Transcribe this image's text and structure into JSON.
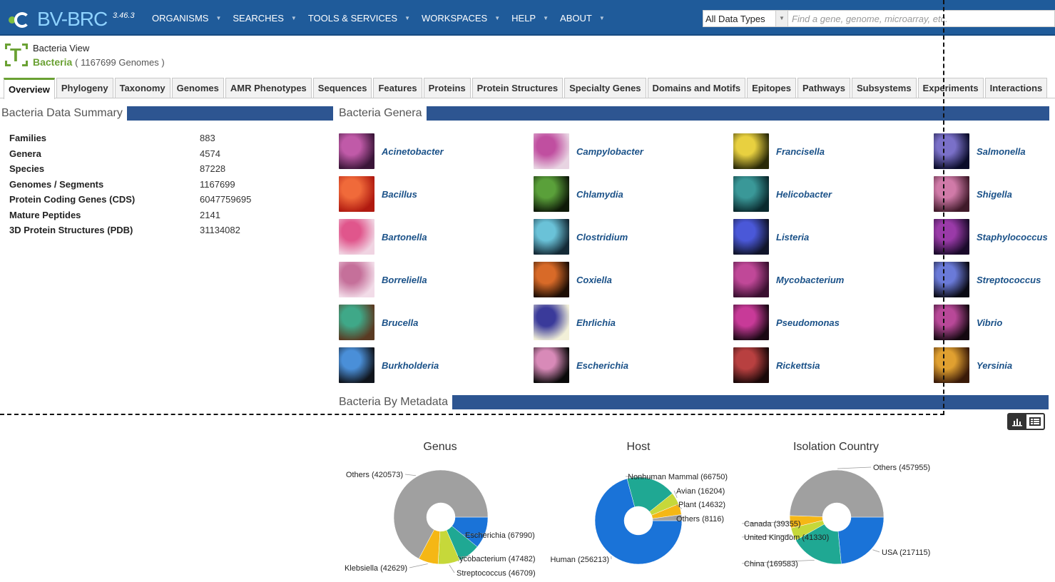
{
  "app": {
    "logo": "BV-BRC",
    "logo_prefix": "",
    "version": "3.46.3",
    "nav": [
      "ORGANISMS",
      "SEARCHES",
      "TOOLS & SERVICES",
      "WORKSPACES",
      "HELP",
      "ABOUT"
    ],
    "search_type": "All Data Types",
    "search_placeholder": "Find a gene, genome, microarray, etc."
  },
  "page": {
    "view_label": "Bacteria View",
    "taxon": "Bacteria",
    "genome_count": "( 1167699 Genomes )"
  },
  "tabs": [
    "Overview",
    "Phylogeny",
    "Taxonomy",
    "Genomes",
    "AMR Phenotypes",
    "Sequences",
    "Features",
    "Proteins",
    "Protein Structures",
    "Specialty Genes",
    "Domains and Motifs",
    "Epitopes",
    "Pathways",
    "Subsystems",
    "Experiments",
    "Interactions"
  ],
  "active_tab": "Overview",
  "summary": {
    "title": "Bacteria Data Summary",
    "rows": [
      {
        "label": "Families",
        "value": "883"
      },
      {
        "label": "Genera",
        "value": "4574"
      },
      {
        "label": "Species",
        "value": "87228"
      },
      {
        "label": "Genomes / Segments",
        "value": "1167699"
      },
      {
        "label": "Protein Coding Genes (CDS)",
        "value": "6047759695"
      },
      {
        "label": "Mature Peptides",
        "value": "2141"
      },
      {
        "label": "3D Protein Structures (PDB)",
        "value": "31134082"
      }
    ]
  },
  "genera": {
    "title": "Bacteria Genera",
    "columns": [
      [
        {
          "name": "Acinetobacter",
          "color": "#c05aa8",
          "bg": "#3a1538"
        },
        {
          "name": "Bacillus",
          "color": "#f06a3a",
          "bg": "#b01a10"
        },
        {
          "name": "Bartonella",
          "color": "#e0568c",
          "bg": "#f0d4e2"
        },
        {
          "name": "Borreliella",
          "color": "#c5709a",
          "bg": "#f2dce8"
        },
        {
          "name": "Brucella",
          "color": "#3fa888",
          "bg": "#5a3a22"
        },
        {
          "name": "Burkholderia",
          "color": "#4a8fd8",
          "bg": "#10141c"
        }
      ],
      [
        {
          "name": "Campylobacter",
          "color": "#c04fa0",
          "bg": "#e8d4e2"
        },
        {
          "name": "Chlamydia",
          "color": "#5aa03a",
          "bg": "#0e1a08"
        },
        {
          "name": "Clostridium",
          "color": "#6ac2d8",
          "bg": "#142a36"
        },
        {
          "name": "Coxiella",
          "color": "#d86a28",
          "bg": "#1e0e04"
        },
        {
          "name": "Ehrlichia",
          "color": "#3a3a9a",
          "bg": "#f2f0d8"
        },
        {
          "name": "Escherichia",
          "color": "#d88ab8",
          "bg": "#0a0a0a"
        }
      ],
      [
        {
          "name": "Francisella",
          "color": "#e8d040",
          "bg": "#2a2a08"
        },
        {
          "name": "Helicobacter",
          "color": "#3a9898",
          "bg": "#0a2a2e"
        },
        {
          "name": "Listeria",
          "color": "#4a58d8",
          "bg": "#10142a"
        },
        {
          "name": "Mycobacterium",
          "color": "#c04898",
          "bg": "#3a1030"
        },
        {
          "name": "Pseudomonas",
          "color": "#c83a98",
          "bg": "#1a0814"
        },
        {
          "name": "Rickettsia",
          "color": "#b84040",
          "bg": "#1a0808"
        }
      ],
      [
        {
          "name": "Salmonella",
          "color": "#7a70c8",
          "bg": "#0a0c2a"
        },
        {
          "name": "Shigella",
          "color": "#d07aa8",
          "bg": "#401a2a"
        },
        {
          "name": "Staphylococcus",
          "color": "#9a3aa8",
          "bg": "#1a0a2a"
        },
        {
          "name": "Streptococcus",
          "color": "#6a7ad8",
          "bg": "#0a0a14"
        },
        {
          "name": "Vibrio",
          "color": "#b84898",
          "bg": "#140810"
        },
        {
          "name": "Yersinia",
          "color": "#e0a030",
          "bg": "#3a1a08"
        }
      ]
    ]
  },
  "metadata": {
    "title": "Bacteria By Metadata"
  },
  "chart_data": [
    {
      "type": "pie",
      "title": "Genus",
      "categories": [
        "Escherichia",
        "Mycobacterium",
        "Streptococcus",
        "Klebsiella",
        "Others"
      ],
      "values": [
        67990,
        47482,
        46709,
        42629,
        420573
      ],
      "labels": [
        "Escherichia (67990)",
        "Mycobacterium (47482)",
        "Streptococcus (46709)",
        "Klebsiella (42629)",
        "Others (420573)"
      ],
      "colors": [
        "#1a73d8",
        "#1fa893",
        "#c6d83a",
        "#f5b715",
        "#a0a0a0"
      ]
    },
    {
      "type": "pie",
      "title": "Host",
      "categories": [
        "Human",
        "Nonhuman Mammal",
        "Avian",
        "Plant",
        "Others"
      ],
      "values": [
        256213,
        66750,
        16204,
        14632,
        8116
      ],
      "labels": [
        "Human (256213)",
        "Nonhuman Mammal (66750)",
        "Avian (16204)",
        "Plant (14632)",
        "Others (8116)"
      ],
      "colors": [
        "#1a73d8",
        "#1fa893",
        "#c6d83a",
        "#f5b715",
        "#a0a0a0"
      ]
    },
    {
      "type": "pie",
      "title": "Isolation Country",
      "categories": [
        "USA",
        "China",
        "United Kingdom",
        "Canada",
        "Others"
      ],
      "values": [
        217115,
        169583,
        41330,
        39355,
        457955
      ],
      "labels": [
        "USA (217115)",
        "China (169583)",
        "United Kingdom (41330)",
        "Canada (39355)",
        "Others (457955)"
      ],
      "colors": [
        "#1a73d8",
        "#1fa893",
        "#c6d83a",
        "#f5b715",
        "#a0a0a0"
      ]
    }
  ]
}
